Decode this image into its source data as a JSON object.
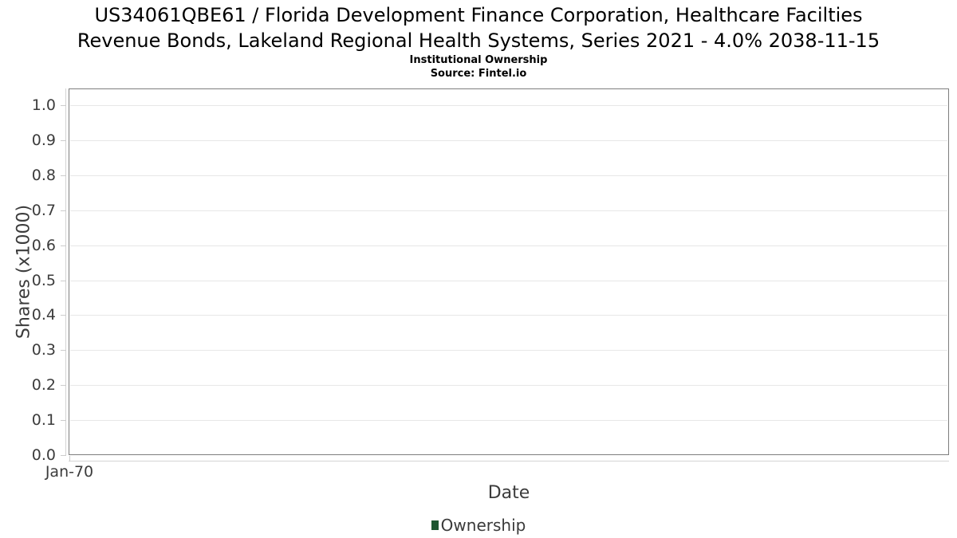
{
  "header": {
    "title": "US34061QBE61 / Florida Development Finance Corporation, Healthcare Facilties\nRevenue Bonds, Lakeland Regional Health Systems, Series 2021 - 4.0% 2038-11-15",
    "subtitle": "Institutional Ownership",
    "source": "Source: Fintel.io"
  },
  "chart_data": {
    "type": "line",
    "title": "US34061QBE61 / Florida Development Finance Corporation, Healthcare Facilties Revenue Bonds, Lakeland Regional Health Systems, Series 2021 - 4.0% 2038-11-15",
    "subtitle": "Institutional Ownership",
    "source": "Source: Fintel.io",
    "xlabel": "Date",
    "ylabel": "Shares (x1000)",
    "x_ticks": [
      "Jan-70"
    ],
    "y_ticks": [
      "1.0",
      "0.9",
      "0.8",
      "0.7",
      "0.6",
      "0.5",
      "0.4",
      "0.3",
      "0.2",
      "0.1",
      "0.0"
    ],
    "ylim": [
      0.0,
      1.05
    ],
    "grid": true,
    "legend_position": "bottom",
    "series": [
      {
        "name": "Ownership",
        "color": "#1e5631",
        "x": [],
        "y": []
      }
    ]
  },
  "colors": {
    "plot_border": "#7e7e7e",
    "gridline": "#e7e7e7",
    "axis_light": "#d4d4d4",
    "tick_text": "#3c3c3c",
    "title_text": "#000000",
    "legend_green": "#1e5631"
  }
}
